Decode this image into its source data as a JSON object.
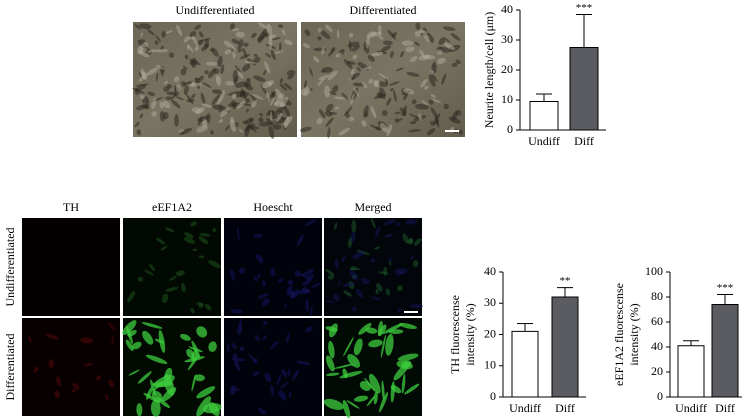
{
  "panel_a": {
    "image_labels": [
      "Undifferentiated",
      "Differentiated"
    ]
  },
  "panel_b": {
    "column_labels": [
      "TH",
      "eEF1A2",
      "Hoescht",
      "Merged"
    ],
    "row_labels": [
      "Undifferentiated",
      "Differentiated"
    ]
  },
  "chart_data": [
    {
      "type": "bar",
      "ylabel": [
        "Neurite length/cell (μm)"
      ],
      "categories": [
        "Undiff",
        "Diff"
      ],
      "values": [
        9.5,
        27.5
      ],
      "errors": [
        2.5,
        11
      ],
      "significance": [
        null,
        "***"
      ],
      "colors": [
        "#ffffff",
        "#5b5b62"
      ],
      "ylim": [
        0,
        40
      ],
      "yticks": [
        0,
        10,
        20,
        30,
        40
      ]
    },
    {
      "type": "bar",
      "ylabel": [
        "TH fluorescense",
        "intensity (%)"
      ],
      "categories": [
        "Undiff",
        "Diff"
      ],
      "values": [
        21,
        32
      ],
      "errors": [
        2.5,
        3
      ],
      "significance": [
        null,
        "**"
      ],
      "colors": [
        "#ffffff",
        "#5b5b62"
      ],
      "ylim": [
        0,
        40
      ],
      "yticks": [
        0,
        10,
        20,
        30,
        40
      ]
    },
    {
      "type": "bar",
      "ylabel": [
        "eEF1A2 fluorescense",
        "intensity (%)"
      ],
      "categories": [
        "Undiff",
        "Diff"
      ],
      "values": [
        41,
        74
      ],
      "errors": [
        4,
        8
      ],
      "significance": [
        null,
        "***"
      ],
      "colors": [
        "#ffffff",
        "#5b5b62"
      ],
      "ylim": [
        0,
        100
      ],
      "yticks": [
        0,
        20,
        40,
        60,
        80,
        100
      ]
    }
  ]
}
